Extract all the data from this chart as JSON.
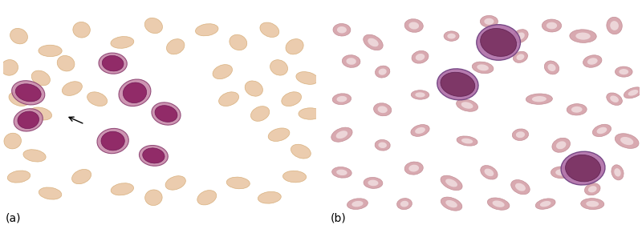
{
  "label_a": "(a)",
  "label_b": "(b)",
  "label_fontsize": 10,
  "background_color": "#ffffff",
  "figwidth": 8.0,
  "figheight": 2.91,
  "dpi": 100,
  "left_bg": "#f5efe0",
  "right_bg": "#f0e8e8",
  "rbc_left_color": "#e8c4a0",
  "rbc_left_edge": "#d4a870",
  "rbc_right_outer": "#d4a0a8",
  "rbc_right_inner": "#f5e8ea",
  "rbc_right_edge": "#c08890",
  "blast_left_outer": "#c88aaa",
  "blast_left_outer_edge": "#8b4070",
  "blast_left_inner": "#8b2060",
  "blast_left_inner_edge": "#6b1050",
  "blast_right_outer": "#b070a8",
  "blast_right_outer_edge": "#704080",
  "blast_right_inner": "#783060",
  "blast_right_inner_edge": "#602050"
}
